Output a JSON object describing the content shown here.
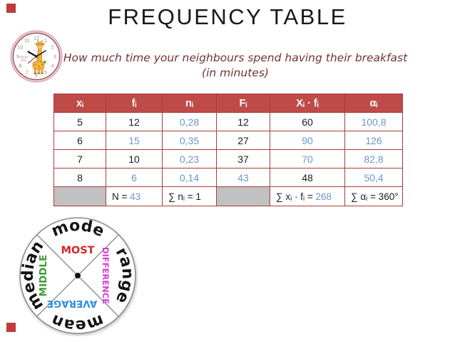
{
  "slide": {
    "title": "FREQUENCY TABLE",
    "subtitle_line1": "How much time your neighbours spend having their breakfast",
    "subtitle_line2": "(in minutes)"
  },
  "clock": {
    "brand_line1": "Happy",
    "brand_line2": "Time",
    "numbers": [
      "12",
      "1",
      "2",
      "3",
      "4",
      "5",
      "6",
      "7",
      "8",
      "9",
      "10",
      "11"
    ]
  },
  "table": {
    "headers": [
      "xᵢ",
      "fᵢ",
      "nᵢ",
      "Fᵢ",
      "Xᵢ · fᵢ",
      "αᵢ"
    ],
    "rows": [
      [
        {
          "t": "5",
          "c": "k"
        },
        {
          "t": "12",
          "c": "k"
        },
        {
          "t": "0,28",
          "c": "b"
        },
        {
          "t": "12",
          "c": "k"
        },
        {
          "t": "60",
          "c": "k"
        },
        {
          "t": "100,8",
          "c": "b"
        }
      ],
      [
        {
          "t": "6",
          "c": "k"
        },
        {
          "t": "15",
          "c": "b"
        },
        {
          "t": "0,35",
          "c": "b"
        },
        {
          "t": "27",
          "c": "k"
        },
        {
          "t": "90",
          "c": "b"
        },
        {
          "t": "126",
          "c": "b"
        }
      ],
      [
        {
          "t": "7",
          "c": "k"
        },
        {
          "t": "10",
          "c": "k"
        },
        {
          "t": "0,23",
          "c": "b"
        },
        {
          "t": "37",
          "c": "k"
        },
        {
          "t": "70",
          "c": "b"
        },
        {
          "t": "82,8",
          "c": "b"
        }
      ],
      [
        {
          "t": "8",
          "c": "k"
        },
        {
          "t": "6",
          "c": "b"
        },
        {
          "t": "0,14",
          "c": "b"
        },
        {
          "t": "43",
          "c": "b"
        },
        {
          "t": "48",
          "c": "k"
        },
        {
          "t": "50,4",
          "c": "b"
        }
      ]
    ],
    "footer": [
      {
        "gray": true,
        "segments": []
      },
      {
        "gray": false,
        "segments": [
          {
            "t": "N = ",
            "c": "k"
          },
          {
            "t": "43",
            "c": "b"
          }
        ]
      },
      {
        "gray": false,
        "segments": [
          {
            "t": "∑ nᵢ = 1",
            "c": "k"
          }
        ]
      },
      {
        "gray": true,
        "segments": []
      },
      {
        "gray": false,
        "segments": [
          {
            "t": "∑ xᵢ · fᵢ = ",
            "c": "k"
          },
          {
            "t": "268",
            "c": "b"
          }
        ]
      },
      {
        "gray": false,
        "segments": [
          {
            "t": "∑ αᵢ = 360°",
            "c": "k"
          }
        ]
      }
    ]
  },
  "wheel": {
    "outer_words": [
      {
        "word": "mode"
      },
      {
        "word": "range"
      },
      {
        "word": "mean"
      },
      {
        "word": "median"
      }
    ],
    "inner_labels": [
      {
        "text": "MOST",
        "color": "#d32626"
      },
      {
        "text": "DIFFERENCE",
        "color": "#d63fd6"
      },
      {
        "text": "MIDDLE",
        "color": "#3f9b35"
      },
      {
        "text": "AVERAGE",
        "color": "#2e90e0"
      }
    ]
  },
  "colors": {
    "header_bg": "#bf4b48",
    "table_border": "#a83c3a",
    "value_blue": "#6c96c5",
    "gray_cell": "#c1c1c1",
    "accent_square": "#c03a3c",
    "subtitle_red": "#713333"
  }
}
